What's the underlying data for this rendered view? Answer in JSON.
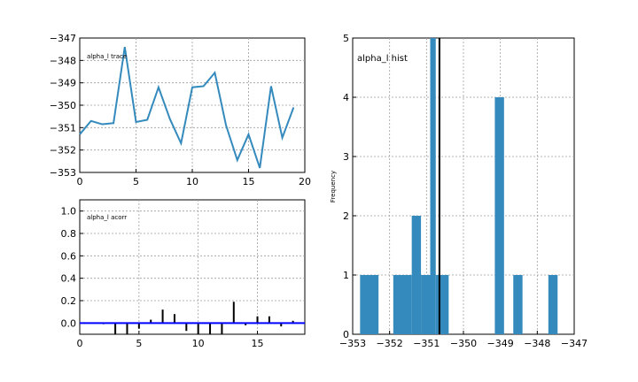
{
  "chart_data": [
    {
      "id": "trace",
      "type": "line",
      "annotation": "alpha_l trace",
      "x": [
        0,
        1,
        2,
        3,
        4,
        5,
        6,
        7,
        8,
        9,
        10,
        11,
        12,
        13,
        14,
        15,
        16,
        17,
        18,
        19
      ],
      "values": [
        -351.3,
        -350.7,
        -350.85,
        -350.8,
        -347.4,
        -350.75,
        -350.65,
        -349.2,
        -350.6,
        -351.7,
        -349.2,
        -349.15,
        -348.55,
        -350.9,
        -352.45,
        -351.3,
        -352.8,
        -349.15,
        -351.45,
        -350.1
      ],
      "xlim": [
        0,
        20
      ],
      "ylim": [
        -353,
        -347
      ],
      "xticks": [
        "0",
        "5",
        "10",
        "15",
        "20"
      ],
      "yticks": [
        "−353",
        "−352",
        "−351",
        "−350",
        "−349",
        "−348",
        "−347"
      ],
      "color": "#348abd",
      "grid": true
    },
    {
      "id": "acorr",
      "type": "bar",
      "annotation": "alpha_l acorr",
      "lags": [
        0,
        1,
        2,
        3,
        4,
        5,
        6,
        7,
        8,
        9,
        10,
        11,
        12,
        13,
        14,
        15,
        16,
        17,
        18
      ],
      "values": [
        0.0,
        0.0,
        -0.01,
        -0.1,
        -0.1,
        -0.05,
        0.03,
        0.12,
        0.08,
        -0.07,
        -0.1,
        -0.1,
        -0.1,
        0.19,
        -0.02,
        0.06,
        0.06,
        -0.03,
        0.02
      ],
      "xlim": [
        0,
        19
      ],
      "ylim": [
        -0.1,
        1.1
      ],
      "xticks": [
        "0",
        "5",
        "10",
        "15"
      ],
      "yticks": [
        "0.0",
        "0.2",
        "0.4",
        "0.6",
        "0.8",
        "1.0"
      ],
      "baseline_color": "#0000ff",
      "grid": true
    },
    {
      "id": "hist",
      "type": "bar",
      "annotation": "alpha_l hist",
      "ylabel": "Frequency",
      "bins": [
        {
          "start": -352.8,
          "end": -352.3,
          "count": 1
        },
        {
          "start": -351.9,
          "end": -351.4,
          "count": 1
        },
        {
          "start": -351.4,
          "end": -351.15,
          "count": 2
        },
        {
          "start": -351.15,
          "end": -350.9,
          "count": 1
        },
        {
          "start": -350.9,
          "end": -350.75,
          "count": 5
        },
        {
          "start": -350.75,
          "end": -350.4,
          "count": 1
        },
        {
          "start": -349.15,
          "end": -348.9,
          "count": 4
        },
        {
          "start": -348.65,
          "end": -348.4,
          "count": 1
        },
        {
          "start": -347.7,
          "end": -347.45,
          "count": 1
        }
      ],
      "mean_line": -350.65,
      "xlim": [
        -353,
        -347
      ],
      "ylim": [
        0,
        5
      ],
      "xticks": [
        "−353",
        "−352",
        "−351",
        "−350",
        "−349",
        "−348",
        "−347"
      ],
      "yticks": [
        "0",
        "1",
        "2",
        "3",
        "4",
        "5"
      ],
      "color": "#348abd",
      "grid": true
    }
  ]
}
